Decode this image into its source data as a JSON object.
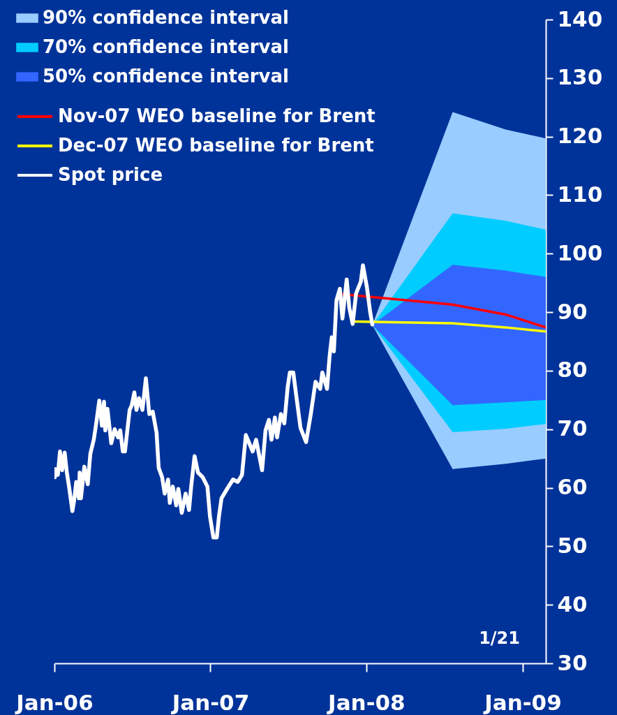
{
  "chart_data": {
    "type": "line",
    "xlim": [
      "2006-01-01",
      "2009-02-24"
    ],
    "ylim": [
      30,
      140
    ],
    "xticks": [
      {
        "value": "2006-01-01",
        "label": "Jan-06"
      },
      {
        "value": "2007-01-01",
        "label": "Jan-07"
      },
      {
        "value": "2008-01-01",
        "label": "Jan-08"
      },
      {
        "value": "2009-01-01",
        "label": "Jan-09"
      }
    ],
    "yticks": [
      30,
      40,
      50,
      60,
      70,
      80,
      90,
      100,
      110,
      120,
      130,
      140
    ],
    "grid": false,
    "legend": "top left",
    "annotations": [
      "1/21"
    ],
    "series": [
      {
        "name": "90% confidence interval",
        "type": "area",
        "color": "#99ccff",
        "x": [
          "2008-01-15",
          "2008-07-21",
          "2008-11-22",
          "2009-02-24"
        ],
        "values": [
          null,
          null,
          null,
          null
        ],
        "lower": [
          87.8,
          63.2,
          64.1,
          65.0
        ],
        "upper": [
          87.8,
          124.2,
          121.2,
          119.7
        ]
      },
      {
        "name": "70% confidence interval",
        "type": "area",
        "color": "#00ccff",
        "x": [
          "2008-01-15",
          "2008-07-21",
          "2008-11-22",
          "2009-02-24"
        ],
        "values": [
          null,
          null,
          null,
          null
        ],
        "lower": [
          87.8,
          69.5,
          70.1,
          70.9
        ],
        "upper": [
          87.8,
          106.9,
          105.6,
          104.1
        ]
      },
      {
        "name": "50% confidence interval",
        "type": "area",
        "color": "#3366ff",
        "x": [
          "2008-01-15",
          "2008-07-21",
          "2008-11-22",
          "2009-02-24"
        ],
        "values": [
          null,
          null,
          null,
          null
        ],
        "lower": [
          87.8,
          74.1,
          74.6,
          75.0
        ],
        "upper": [
          87.8,
          98.1,
          97.1,
          96.0
        ]
      },
      {
        "name": "Nov-07 WEO baseline for Brent",
        "type": "line",
        "color": "#ff0000",
        "x": [
          "2007-10-31",
          "2008-07-21",
          "2008-11-22",
          "2009-02-24"
        ],
        "values": [
          93.1,
          91.3,
          89.6,
          87.4
        ]
      },
      {
        "name": "Dec-07 WEO baseline for Brent",
        "type": "line",
        "color": "#ffff00",
        "x": [
          "2007-11-29",
          "2008-07-21",
          "2008-11-22",
          "2009-02-24"
        ],
        "values": [
          88.4,
          88.1,
          87.4,
          86.7
        ]
      },
      {
        "name": "Spot price",
        "type": "line",
        "color": "#ffffff",
        "x": [
          "2006-01-02",
          "2006-01-03",
          "2006-01-09",
          "2006-01-14",
          "2006-01-19",
          "2006-01-25",
          "2006-01-30",
          "2006-02-05",
          "2006-02-12",
          "2006-02-16",
          "2006-02-21",
          "2006-02-27",
          "2006-03-01",
          "2006-03-04",
          "2006-03-12",
          "2006-03-20",
          "2006-03-26",
          "2006-04-03",
          "2006-04-08",
          "2006-04-16",
          "2006-04-22",
          "2006-04-27",
          "2006-04-30",
          "2006-05-05",
          "2006-05-14",
          "2006-05-22",
          "2006-05-30",
          "2006-06-04",
          "2006-06-10",
          "2006-06-15",
          "2006-06-26",
          "2006-07-01",
          "2006-07-07",
          "2006-07-12",
          "2006-07-18",
          "2006-07-26",
          "2006-08-03",
          "2006-08-11",
          "2006-08-19",
          "2006-08-28",
          "2006-09-02",
          "2006-09-10",
          "2006-09-16",
          "2006-09-24",
          "2006-09-28",
          "2006-10-05",
          "2006-10-13",
          "2006-10-18",
          "2006-10-26",
          "2006-11-04",
          "2006-11-12",
          "2006-11-17",
          "2006-11-25",
          "2006-12-03",
          "2006-12-14",
          "2006-12-25",
          "2006-12-31",
          "2007-01-08",
          "2007-01-16",
          "2007-01-21",
          "2007-01-27",
          "2007-02-09",
          "2007-02-23",
          "2007-03-06",
          "2007-03-16",
          "2007-03-25",
          "2007-04-10",
          "2007-04-18",
          "2007-05-02",
          "2007-05-10",
          "2007-05-18",
          "2007-05-24",
          "2007-06-01",
          "2007-06-06",
          "2007-06-15",
          "2007-06-23",
          "2007-07-01",
          "2007-07-06",
          "2007-07-14",
          "2007-07-21",
          "2007-07-31",
          "2007-08-13",
          "2007-08-24",
          "2007-09-04",
          "2007-09-15",
          "2007-09-20",
          "2007-10-01",
          "2007-10-07",
          "2007-10-12",
          "2007-10-17",
          "2007-10-23",
          "2007-10-31",
          "2007-11-06",
          "2007-11-16",
          "2007-11-22",
          "2007-11-30",
          "2007-12-08",
          "2007-12-19",
          "2007-12-24",
          "2008-01-02",
          "2008-01-10",
          "2008-01-15"
        ],
        "values": [
          61.8,
          63.2,
          62.2,
          66.2,
          63.0,
          66.0,
          62.6,
          59.8,
          56.0,
          57.8,
          61.0,
          58.2,
          62.6,
          58.2,
          63.6,
          60.6,
          65.8,
          68.2,
          70.6,
          74.9,
          70.6,
          74.7,
          69.8,
          73.5,
          67.6,
          70.0,
          68.6,
          69.8,
          66.2,
          66.2,
          73.3,
          74.1,
          76.3,
          73.3,
          75.3,
          73.3,
          78.7,
          72.6,
          73.0,
          69.4,
          63.4,
          61.8,
          59.0,
          61.4,
          57.4,
          60.2,
          57.0,
          59.8,
          55.7,
          59.0,
          56.2,
          60.2,
          65.4,
          62.6,
          61.8,
          60.2,
          55.1,
          51.5,
          51.5,
          55.1,
          58.2,
          59.8,
          61.4,
          61.0,
          62.2,
          69.0,
          66.2,
          68.2,
          63.0,
          69.8,
          71.6,
          68.2,
          72.0,
          68.6,
          72.6,
          71.0,
          77.3,
          79.7,
          79.7,
          75.7,
          70.2,
          67.8,
          72.6,
          78.1,
          76.9,
          79.7,
          76.9,
          82.5,
          85.7,
          83.3,
          92.0,
          94.0,
          88.9,
          95.6,
          90.8,
          88.0,
          93.2,
          95.2,
          98.0,
          94.4,
          90.0,
          87.9
        ]
      }
    ]
  }
}
